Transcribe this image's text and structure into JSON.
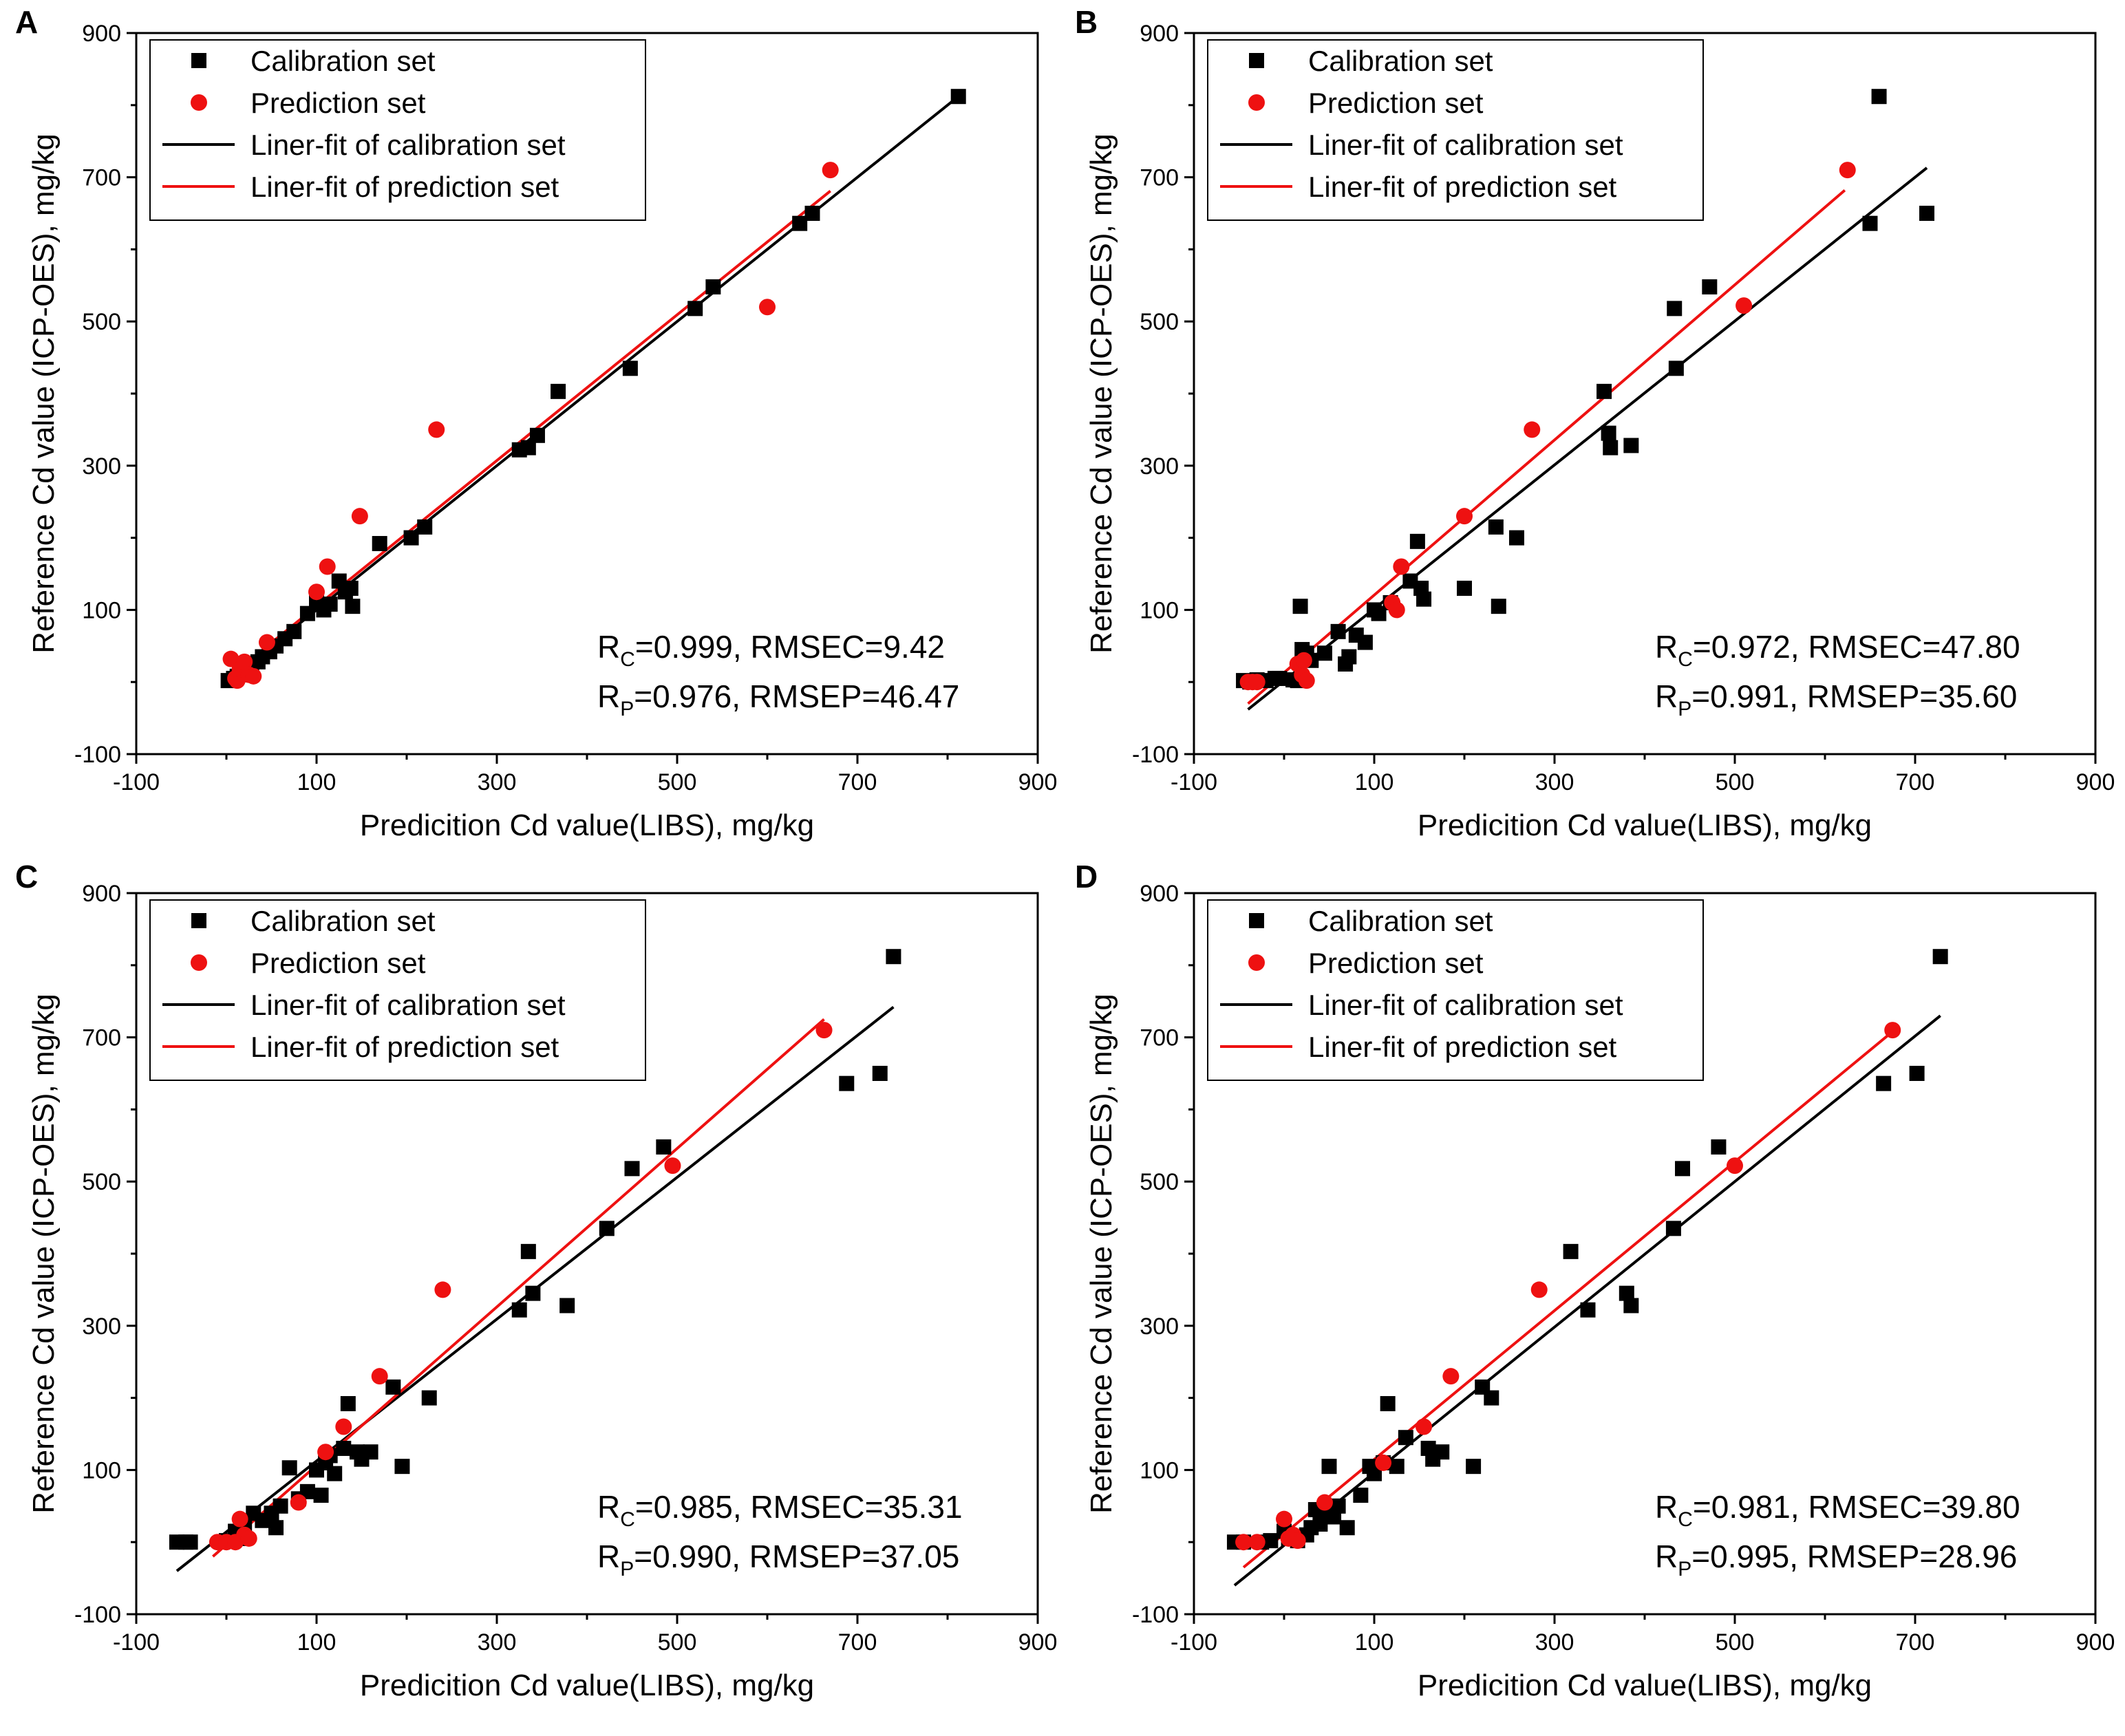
{
  "figure": {
    "description_panels": [
      "A",
      "B",
      "C",
      "D"
    ]
  },
  "chart_data": [
    {
      "panel": "A",
      "type": "scatter",
      "xlabel": "Predicition Cd value(LIBS), mg/kg",
      "ylabel": "Reference Cd value (ICP-OES), mg/kg",
      "xlim": [
        -100,
        900
      ],
      "ylim": [
        -100,
        900
      ],
      "xticks": [
        -100,
        100,
        300,
        500,
        700,
        900
      ],
      "yticks": [
        -100,
        100,
        300,
        500,
        700,
        900
      ],
      "legend": [
        "Calibration set",
        "Prediction set",
        "Liner-fit of calibration set",
        "Liner-fit of prediction set"
      ],
      "stats": {
        "rc": "0.999",
        "rmsec": "9.42",
        "rp": "0.976",
        "rmsep": "46.47"
      },
      "series": [
        {
          "name": "Calibration set",
          "marker": "square",
          "color": "#000000",
          "x": [
            2,
            8,
            12,
            18,
            22,
            28,
            35,
            40,
            48,
            55,
            65,
            75,
            90,
            100,
            108,
            115,
            125,
            132,
            138,
            140,
            170,
            205,
            220,
            325,
            335,
            345,
            368,
            448,
            520,
            540,
            636,
            650,
            812
          ],
          "y": [
            2,
            5,
            8,
            10,
            15,
            20,
            28,
            35,
            42,
            50,
            60,
            70,
            95,
            110,
            100,
            108,
            140,
            125,
            130,
            105,
            192,
            200,
            215,
            322,
            325,
            342,
            403,
            435,
            518,
            548,
            636,
            650,
            812
          ]
        },
        {
          "name": "Prediction set",
          "marker": "circle",
          "color": "#ee1111",
          "x": [
            5,
            10,
            12,
            15,
            20,
            25,
            30,
            45,
            100,
            112,
            148,
            233,
            600,
            670
          ],
          "y": [
            32,
            5,
            2,
            18,
            28,
            10,
            8,
            55,
            125,
            160,
            230,
            350,
            520,
            710
          ]
        },
        {
          "name": "Liner-fit of calibration set",
          "type": "line",
          "color": "#000000",
          "x": [
            0,
            812
          ],
          "y": [
            0,
            812
          ]
        },
        {
          "name": "Liner-fit of prediction set",
          "type": "line",
          "color": "#ee1111",
          "x": [
            0,
            670
          ],
          "y": [
            4,
            681
          ]
        }
      ]
    },
    {
      "panel": "B",
      "type": "scatter",
      "xlabel": "Predicition Cd value(LIBS), mg/kg",
      "ylabel": "Reference Cd value (ICP-OES), mg/kg",
      "xlim": [
        -100,
        900
      ],
      "ylim": [
        -100,
        900
      ],
      "xticks": [
        -100,
        100,
        300,
        500,
        700,
        900
      ],
      "yticks": [
        -100,
        100,
        300,
        500,
        700,
        900
      ],
      "legend": [
        "Calibration set",
        "Prediction set",
        "Liner-fit of calibration set",
        "Liner-fit of prediction set"
      ],
      "stats": {
        "rc": "0.972",
        "rmsec": "47.80",
        "rp": "0.991",
        "rmsep": "35.60"
      },
      "series": [
        {
          "name": "Calibration set",
          "marker": "square",
          "color": "#000000",
          "x": [
            -45,
            -38,
            -30,
            -20,
            -10,
            -5,
            10,
            15,
            18,
            20,
            25,
            30,
            45,
            60,
            68,
            72,
            80,
            90,
            100,
            105,
            118,
            140,
            148,
            152,
            155,
            200,
            235,
            238,
            258,
            355,
            360,
            362,
            385,
            433,
            435,
            472,
            650,
            660,
            713
          ],
          "y": [
            2,
            0,
            3,
            2,
            5,
            5,
            3,
            2,
            105,
            45,
            40,
            30,
            40,
            70,
            25,
            35,
            65,
            55,
            100,
            95,
            110,
            140,
            195,
            130,
            115,
            130,
            215,
            105,
            200,
            403,
            345,
            325,
            328,
            518,
            435,
            548,
            636,
            812,
            650
          ],
          "marker_size": 1
        },
        {
          "name": "Prediction set",
          "marker": "circle",
          "color": "#ee1111",
          "x": [
            -40,
            -35,
            -30,
            15,
            20,
            22,
            25,
            120,
            125,
            130,
            200,
            275,
            510,
            625
          ],
          "y": [
            0,
            0,
            0,
            25,
            10,
            30,
            2,
            110,
            100,
            160,
            230,
            350,
            522,
            710
          ]
        },
        {
          "name": "Liner-fit of calibration set",
          "type": "line",
          "color": "#000000",
          "x": [
            -40,
            713
          ],
          "y": [
            -38,
            713
          ]
        },
        {
          "name": "Liner-fit of prediction set",
          "type": "line",
          "color": "#ee1111",
          "x": [
            -40,
            622
          ],
          "y": [
            -30,
            682
          ]
        }
      ]
    },
    {
      "panel": "C",
      "type": "scatter",
      "xlabel": "Predicition Cd value(LIBS), mg/kg",
      "ylabel": "Reference Cd value (ICP-OES), mg/kg",
      "xlim": [
        -100,
        900
      ],
      "ylim": [
        -100,
        900
      ],
      "xticks": [
        -100,
        100,
        300,
        500,
        700,
        900
      ],
      "yticks": [
        -100,
        100,
        300,
        500,
        700,
        900
      ],
      "legend": [
        "Calibration set",
        "Prediction set",
        "Liner-fit of calibration set",
        "Liner-fit of prediction set"
      ],
      "stats": {
        "rc": "0.985",
        "rmsec": "35.31",
        "rp": "0.990",
        "rmsep": "37.05"
      },
      "series": [
        {
          "name": "Calibration set",
          "marker": "square",
          "color": "#000000",
          "x": [
            -55,
            -45,
            -40,
            0,
            10,
            15,
            20,
            30,
            40,
            50,
            55,
            60,
            70,
            80,
            90,
            100,
            105,
            110,
            115,
            120,
            130,
            135,
            145,
            150,
            160,
            185,
            195,
            225,
            325,
            335,
            340,
            378,
            422,
            450,
            485,
            688,
            725,
            740
          ],
          "y": [
            0,
            0,
            0,
            2,
            15,
            5,
            20,
            40,
            30,
            40,
            20,
            50,
            103,
            60,
            70,
            100,
            65,
            110,
            120,
            95,
            130,
            192,
            125,
            115,
            125,
            215,
            105,
            200,
            322,
            403,
            345,
            328,
            435,
            518,
            548,
            636,
            650,
            812
          ]
        },
        {
          "name": "Prediction set",
          "marker": "circle",
          "color": "#ee1111",
          "x": [
            -10,
            0,
            10,
            15,
            20,
            25,
            80,
            110,
            130,
            170,
            240,
            495,
            663
          ],
          "y": [
            0,
            0,
            0,
            32,
            10,
            5,
            55,
            125,
            160,
            230,
            350,
            522,
            710
          ]
        },
        {
          "name": "Liner-fit of calibration set",
          "type": "line",
          "color": "#000000",
          "x": [
            -55,
            740
          ],
          "y": [
            -40,
            742
          ]
        },
        {
          "name": "Liner-fit of prediction set",
          "type": "line",
          "color": "#ee1111",
          "x": [
            -15,
            663
          ],
          "y": [
            -20,
            725
          ]
        }
      ]
    },
    {
      "panel": "D",
      "type": "scatter",
      "xlabel": "Predicition Cd value(LIBS), mg/kg",
      "ylabel": "Reference Cd value (ICP-OES), mg/kg",
      "xlim": [
        -100,
        900
      ],
      "ylim": [
        -100,
        900
      ],
      "xticks": [
        -100,
        100,
        300,
        500,
        700,
        900
      ],
      "yticks": [
        -100,
        100,
        300,
        500,
        700,
        900
      ],
      "legend": [
        "Calibration set",
        "Prediction set",
        "Liner-fit of calibration set",
        "Liner-fit of prediction set"
      ],
      "stats": {
        "rc": "0.981",
        "rmsec": "39.80",
        "rp": "0.995",
        "rmsep": "28.96"
      },
      "series": [
        {
          "name": "Calibration set",
          "marker": "square",
          "color": "#000000",
          "x": [
            -55,
            -45,
            -25,
            -15,
            0,
            5,
            15,
            25,
            30,
            35,
            40,
            45,
            50,
            55,
            60,
            70,
            85,
            95,
            100,
            110,
            115,
            125,
            135,
            160,
            165,
            175,
            210,
            220,
            230,
            318,
            337,
            380,
            385,
            432,
            442,
            482,
            665,
            702,
            728
          ],
          "y": [
            0,
            0,
            0,
            2,
            15,
            5,
            2,
            10,
            20,
            45,
            25,
            40,
            105,
            35,
            50,
            20,
            65,
            105,
            95,
            110,
            192,
            105,
            145,
            130,
            115,
            125,
            105,
            215,
            200,
            403,
            322,
            345,
            328,
            435,
            518,
            548,
            636,
            650,
            812
          ]
        },
        {
          "name": "Prediction set",
          "marker": "circle",
          "color": "#ee1111",
          "x": [
            -45,
            -30,
            0,
            5,
            10,
            15,
            45,
            110,
            155,
            185,
            283,
            500,
            675
          ],
          "y": [
            0,
            0,
            32,
            5,
            10,
            2,
            55,
            110,
            160,
            230,
            350,
            522,
            710
          ]
        },
        {
          "name": "Liner-fit of calibration set",
          "type": "line",
          "color": "#000000",
          "x": [
            -55,
            728
          ],
          "y": [
            -60,
            730
          ]
        },
        {
          "name": "Liner-fit of prediction set",
          "type": "line",
          "color": "#ee1111",
          "x": [
            -45,
            675
          ],
          "y": [
            -35,
            708
          ]
        }
      ]
    }
  ]
}
